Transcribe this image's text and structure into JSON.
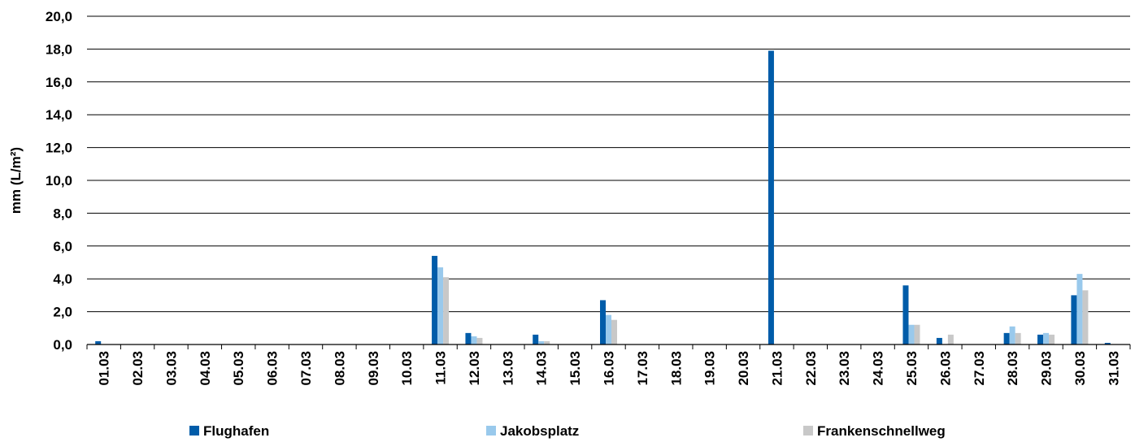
{
  "chart_data": {
    "type": "bar",
    "title": "",
    "xlabel": "",
    "ylabel": "mm  (L/m²)",
    "ylim": [
      0,
      20
    ],
    "yticks": [
      "0,0",
      "2,0",
      "4,0",
      "6,0",
      "8,0",
      "10,0",
      "12,0",
      "14,0",
      "16,0",
      "18,0",
      "20,0"
    ],
    "grid": "horizontal",
    "legend_position": "bottom",
    "categories": [
      "01.03",
      "02.03",
      "03.03",
      "04.03",
      "05.03",
      "06.03",
      "07.03",
      "08.03",
      "09.03",
      "10.03",
      "11.03",
      "12.03",
      "13.03",
      "14.03",
      "15.03",
      "16.03",
      "17.03",
      "18.03",
      "19.03",
      "20.03",
      "21.03",
      "22.03",
      "23.03",
      "24.03",
      "25.03",
      "26.03",
      "27.03",
      "28.03",
      "29.03",
      "30.03",
      "31.03"
    ],
    "series": [
      {
        "name": "Flughafen",
        "color": "#005ca9",
        "values": [
          0.2,
          0,
          0,
          0,
          0,
          0,
          0,
          0,
          0,
          0,
          5.4,
          0.7,
          0,
          0.6,
          0,
          2.7,
          0,
          0,
          0,
          0,
          17.9,
          0,
          0,
          0,
          3.6,
          0.4,
          0,
          0.7,
          0.6,
          3.0,
          0.1
        ]
      },
      {
        "name": "Jakobsplatz",
        "color": "#99c9ec",
        "values": [
          0,
          0,
          0,
          0,
          0,
          0,
          0,
          0,
          0,
          0,
          4.7,
          0.5,
          0,
          0.2,
          0,
          1.8,
          0,
          0,
          0,
          0,
          0,
          0,
          0,
          0,
          1.2,
          0,
          0,
          1.1,
          0.7,
          4.3,
          0
        ]
      },
      {
        "name": "Frankenschnellweg",
        "color": "#c8c8c8",
        "values": [
          0,
          0,
          0,
          0,
          0,
          0,
          0,
          0,
          0,
          0,
          4.1,
          0.4,
          0,
          0.2,
          0,
          1.5,
          0,
          0,
          0,
          0,
          0,
          0,
          0,
          0,
          1.2,
          0.6,
          0,
          0.7,
          0.6,
          3.3,
          0
        ]
      }
    ]
  }
}
